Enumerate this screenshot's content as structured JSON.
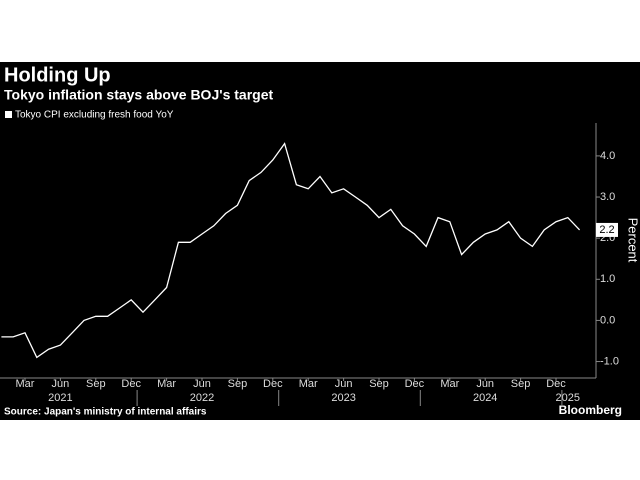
{
  "chart_data": {
    "type": "line",
    "title": "Holding Up",
    "subtitle": "Tokyo inflation stays above BOJ's target",
    "y_label": "Percent",
    "source": "Source: Japan's ministry of internal affairs",
    "brand": "Bloomberg",
    "x": [
      "2021-01",
      "2021-02",
      "2021-03",
      "2021-04",
      "2021-05",
      "2021-06",
      "2021-07",
      "2021-08",
      "2021-09",
      "2021-10",
      "2021-11",
      "2021-12",
      "2022-01",
      "2022-02",
      "2022-03",
      "2022-04",
      "2022-05",
      "2022-06",
      "2022-07",
      "2022-08",
      "2022-09",
      "2022-10",
      "2022-11",
      "2022-12",
      "2023-01",
      "2023-02",
      "2023-03",
      "2023-04",
      "2023-05",
      "2023-06",
      "2023-07",
      "2023-08",
      "2023-09",
      "2023-10",
      "2023-11",
      "2023-12",
      "2024-01",
      "2024-02",
      "2024-03",
      "2024-04",
      "2024-05",
      "2024-06",
      "2024-07",
      "2024-08",
      "2024-09",
      "2024-10",
      "2024-11",
      "2024-12",
      "2025-01",
      "2025-02"
    ],
    "series": [
      {
        "name": "Tokyo CPI excluding fresh food YoY",
        "color": "#ffffff",
        "values": [
          -0.4,
          -0.4,
          -0.3,
          -0.9,
          -0.7,
          -0.6,
          -0.3,
          0.0,
          0.1,
          0.1,
          0.3,
          0.5,
          0.2,
          0.5,
          0.8,
          1.9,
          1.9,
          2.1,
          2.3,
          2.6,
          2.8,
          3.4,
          3.6,
          3.9,
          4.3,
          3.3,
          3.2,
          3.5,
          3.1,
          3.2,
          3.0,
          2.8,
          2.5,
          2.7,
          2.3,
          2.1,
          1.8,
          2.5,
          2.4,
          1.6,
          1.9,
          2.1,
          2.2,
          2.4,
          2.0,
          1.8,
          2.2,
          2.4,
          2.5,
          2.2
        ]
      }
    ],
    "ylim": [
      -1.4,
      4.8
    ],
    "yticks": [
      {
        "value": -1,
        "label": "-1.0"
      },
      {
        "value": 0,
        "label": "0.0"
      },
      {
        "value": 1,
        "label": "1.0"
      },
      {
        "value": 2,
        "label": "2.0"
      },
      {
        "value": 3,
        "label": "3.0"
      },
      {
        "value": 4,
        "label": "4.0"
      }
    ],
    "xticks": [
      {
        "value": "2021-03",
        "label": "Mar"
      },
      {
        "value": "2021-06",
        "label": "Jun"
      },
      {
        "value": "2021-09",
        "label": "Sep"
      },
      {
        "value": "2021-12",
        "label": "Dec"
      },
      {
        "value": "2022-03",
        "label": "Mar"
      },
      {
        "value": "2022-06",
        "label": "Jun"
      },
      {
        "value": "2022-09",
        "label": "Sep"
      },
      {
        "value": "2022-12",
        "label": "Dec"
      },
      {
        "value": "2023-03",
        "label": "Mar"
      },
      {
        "value": "2023-06",
        "label": "Jun"
      },
      {
        "value": "2023-09",
        "label": "Sep"
      },
      {
        "value": "2023-12",
        "label": "Dec"
      },
      {
        "value": "2024-03",
        "label": "Mar"
      },
      {
        "value": "2024-06",
        "label": "Jun"
      },
      {
        "value": "2024-09",
        "label": "Sep"
      },
      {
        "value": "2024-12",
        "label": "Dec"
      }
    ],
    "year_ticks": [
      {
        "value": "2021-06",
        "label": "2021"
      },
      {
        "value": "2022-06",
        "label": "2022"
      },
      {
        "value": "2023-06",
        "label": "2023"
      },
      {
        "value": "2024-06",
        "label": "2024"
      },
      {
        "value": "2025-01",
        "label": "2025"
      }
    ],
    "axis_side": "right",
    "grid": false
  }
}
